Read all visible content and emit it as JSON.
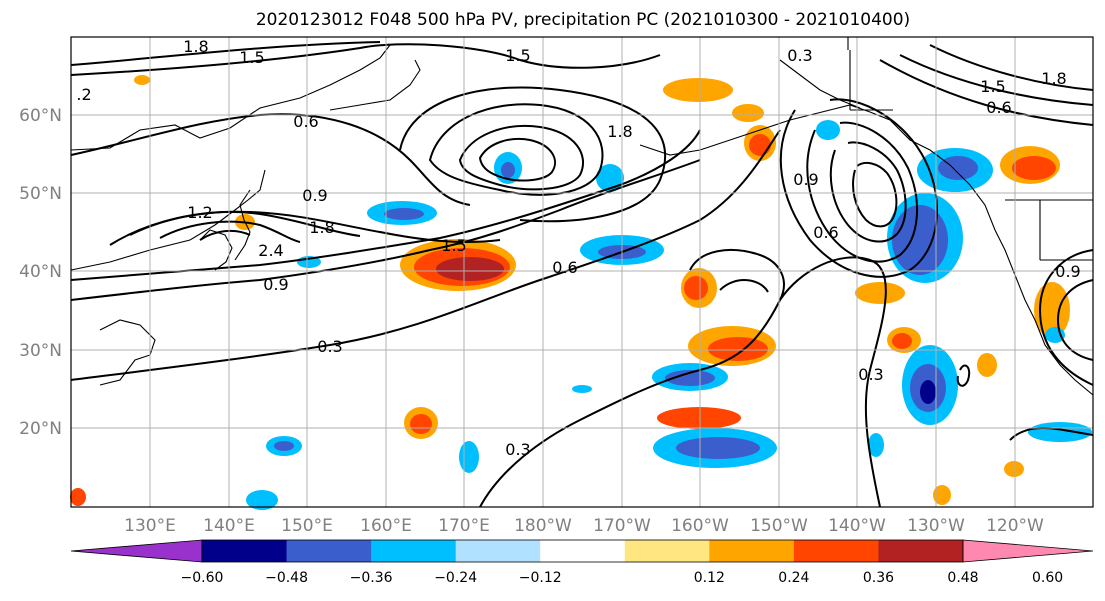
{
  "title": "2020123012 F048 500 hPa PV, precipitation PC (2021010300 - 2021010400)",
  "lat_labels": [
    "60°N",
    "50°N",
    "40°N",
    "30°N",
    "20°N"
  ],
  "lon_labels": [
    "130°E",
    "140°E",
    "150°E",
    "160°E",
    "170°E",
    "180°W",
    "170°W",
    "160°W",
    "150°W",
    "140°W",
    "130°W",
    "120°W"
  ],
  "contour_labels": [
    "1.8",
    "1.5",
    ".2",
    "0.6",
    "1.5",
    "0.3",
    "1.8",
    "1.8",
    "1.5",
    "0.6",
    "1.2",
    "0.9",
    "1.8",
    "2.4",
    "1.5",
    "0.9",
    "0.6",
    "0.3",
    "0.3",
    "0.9",
    "0.6",
    "0.3",
    "0.9"
  ],
  "colorbar": {
    "ticks": [
      "−0.60",
      "−0.48",
      "−0.36",
      "−0.24",
      "−0.12",
      "0.12",
      "0.24",
      "0.36",
      "0.48",
      "0.60"
    ],
    "colors": [
      "#9932cc",
      "#00008b",
      "#3a5fcd",
      "#00bfff",
      "#b0e2ff",
      "#ffffff",
      "#ffe680",
      "#ffa500",
      "#ff4500",
      "#b22222",
      "#ff88b0"
    ]
  },
  "colors": {
    "land": "#000000",
    "grid": "#b0b0b0",
    "contour": "#000000"
  }
}
